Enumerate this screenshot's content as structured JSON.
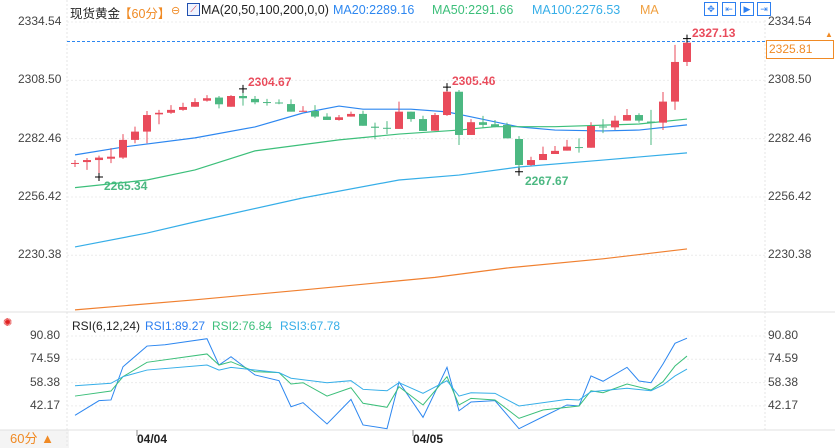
{
  "header": {
    "symbol": "现货黄金",
    "period": "【60分】",
    "ma_label": "MA(20,50,100,200,0,0)",
    "ma20": "MA20:2289.16",
    "ma50": "MA50:2291.66",
    "ma100": "MA100:2276.53",
    "ma200": "MA",
    "toolbar_icons": [
      "crosshair-icon",
      "range-icon",
      "play-icon",
      "next-icon"
    ]
  },
  "price_axis": {
    "left_labels": [
      "2334.54",
      "2308.50",
      "2282.46",
      "2256.42",
      "2230.38"
    ],
    "right_labels": [
      "2334.54",
      "2308.50",
      "2282.46",
      "2256.42",
      "2230.38"
    ],
    "current_price": "2325.81"
  },
  "annotations": {
    "high1": "2304.67",
    "high2": "2305.46",
    "high3": "2327.13",
    "low1": "2265.34",
    "low2": "2267.67"
  },
  "rsi": {
    "label": "RSI(6,12,24)",
    "rsi1": "RSI1:89.27",
    "rsi2": "RSI2:76.84",
    "rsi3": "RSI3:67.78",
    "left_labels": [
      "90.80",
      "74.59",
      "58.38",
      "42.17"
    ],
    "right_labels": [
      "90.80",
      "74.59",
      "58.38",
      "42.17"
    ]
  },
  "footer": {
    "period_button": "60分 ▲",
    "dates": [
      "04/04",
      "04/05"
    ]
  },
  "colors": {
    "up": "#e94b5b",
    "down": "#4cb882",
    "ma20": "#2d87f0",
    "ma50": "#3cbf7a",
    "ma100": "#36aee8",
    "ma200": "#f08030",
    "accent": "#f08a24"
  },
  "chart_data": [
    {
      "type": "candlestick",
      "title": "现货黄金 60分",
      "ylim": [
        2210,
        2340
      ],
      "ohlc": [
        [
          2271.3,
          2272.9,
          2269.8,
          2271.6
        ],
        [
          2272.0,
          2273.8,
          2268.5,
          2272.9
        ],
        [
          2272.9,
          2274.9,
          2265.34,
          2274.0
        ],
        [
          2273.5,
          2278.2,
          2271.5,
          2274.4
        ],
        [
          2274.0,
          2284.5,
          2273.4,
          2281.9
        ],
        [
          2281.9,
          2287.8,
          2280.4,
          2285.6
        ],
        [
          2285.6,
          2294.8,
          2280.4,
          2293.0
        ],
        [
          2293.3,
          2295.3,
          2288.9,
          2294.0
        ],
        [
          2294.0,
          2297.4,
          2293.5,
          2295.3
        ],
        [
          2295.3,
          2298.5,
          2294.9,
          2296.6
        ],
        [
          2296.7,
          2300.5,
          2296.7,
          2298.8
        ],
        [
          2299.4,
          2301.9,
          2299.0,
          2300.5
        ],
        [
          2300.8,
          2301.5,
          2296.0,
          2297.8
        ],
        [
          2296.7,
          2301.9,
          2296.7,
          2301.5
        ],
        [
          2301.5,
          2304.67,
          2297.2,
          2300.5
        ],
        [
          2300.2,
          2301.5,
          2297.8,
          2298.7
        ],
        [
          2298.8,
          2300.2,
          2297.2,
          2298.6
        ],
        [
          2298.6,
          2300.0,
          2297.8,
          2298.3
        ],
        [
          2297.9,
          2300.0,
          2294.5,
          2294.5
        ],
        [
          2294.5,
          2297.0,
          2294.5,
          2294.9
        ],
        [
          2294.8,
          2297.4,
          2291.6,
          2292.3
        ],
        [
          2292.3,
          2293.8,
          2290.8,
          2290.8
        ],
        [
          2290.8,
          2293.0,
          2290.5,
          2292.0
        ],
        [
          2292.3,
          2294.5,
          2292.3,
          2293.5
        ],
        [
          2293.5,
          2294.9,
          2288.2,
          2288.2
        ],
        [
          2287.8,
          2289.6,
          2282.2,
          2287.3
        ],
        [
          2287.3,
          2290.3,
          2284.5,
          2287.0
        ],
        [
          2286.8,
          2299.0,
          2286.8,
          2294.5
        ],
        [
          2294.5,
          2294.5,
          2290.0,
          2291.2
        ],
        [
          2291.2,
          2292.7,
          2285.9,
          2285.9
        ],
        [
          2286.0,
          2293.9,
          2286.0,
          2293.0
        ],
        [
          2293.0,
          2305.46,
          2292.6,
          2303.4
        ],
        [
          2303.4,
          2304.2,
          2279.6,
          2284.1
        ],
        [
          2284.1,
          2291.2,
          2284.1,
          2289.8
        ],
        [
          2289.8,
          2292.6,
          2287.4,
          2288.6
        ],
        [
          2288.9,
          2290.8,
          2287.5,
          2287.8
        ],
        [
          2288.6,
          2289.6,
          2282.6,
          2282.6
        ],
        [
          2282.3,
          2283.6,
          2267.67,
          2270.7
        ],
        [
          2270.7,
          2274.4,
          2270.3,
          2272.9
        ],
        [
          2272.9,
          2278.9,
          2272.9,
          2275.6
        ],
        [
          2275.6,
          2279.2,
          2275.6,
          2277.0
        ],
        [
          2277.1,
          2281.9,
          2277.1,
          2278.9
        ],
        [
          2278.7,
          2282.6,
          2276.2,
          2278.4
        ],
        [
          2278.4,
          2289.8,
          2278.4,
          2288.1
        ],
        [
          2287.9,
          2291.2,
          2284.9,
          2287.6
        ],
        [
          2287.5,
          2292.7,
          2286.3,
          2290.5
        ],
        [
          2290.5,
          2295.7,
          2290.5,
          2293.0
        ],
        [
          2293.0,
          2293.8,
          2289.6,
          2290.5
        ],
        [
          2290.1,
          2295.3,
          2279.6,
          2289.8
        ],
        [
          2289.6,
          2303.3,
          2286.3,
          2299.0
        ],
        [
          2299.0,
          2324.3,
          2295.3,
          2316.7
        ],
        [
          2316.7,
          2327.13,
          2314.9,
          2325.3
        ]
      ],
      "ma_series": [
        {
          "name": "MA20",
          "points": [
            [
              0,
              2275.2
            ],
            [
              4,
              2278.7
            ],
            [
              10,
              2282.8
            ],
            [
              15,
              2287.7
            ],
            [
              19,
              2293.9
            ],
            [
              22,
              2297.0
            ],
            [
              24,
              2295.6
            ],
            [
              28,
              2295.6
            ],
            [
              31,
              2294.4
            ],
            [
              33,
              2292.2
            ],
            [
              37,
              2287.7
            ],
            [
              40,
              2286.3
            ],
            [
              44,
              2285.9
            ],
            [
              47,
              2286.3
            ],
            [
              51,
              2288.6
            ]
          ]
        },
        {
          "name": "MA50",
          "points": [
            [
              0,
              2260.6
            ],
            [
              6,
              2264.0
            ],
            [
              10,
              2268.5
            ],
            [
              15,
              2277.0
            ],
            [
              22,
              2281.9
            ],
            [
              27,
              2284.5
            ],
            [
              32,
              2286.3
            ],
            [
              35,
              2287.8
            ],
            [
              40,
              2287.8
            ],
            [
              47,
              2289.0
            ],
            [
              51,
              2291.2
            ]
          ]
        },
        {
          "name": "MA100",
          "points": [
            [
              0,
              2234.1
            ],
            [
              6,
              2240.3
            ],
            [
              10,
              2245.3
            ],
            [
              19,
              2256.0
            ],
            [
              27,
              2264.0
            ],
            [
              32,
              2266.2
            ],
            [
              37,
              2269.8
            ],
            [
              44,
              2272.9
            ],
            [
              51,
              2276.1
            ]
          ]
        },
        {
          "name": "MA200",
          "points": [
            [
              0,
              2206.0
            ],
            [
              10,
              2210.5
            ],
            [
              19,
              2214.9
            ],
            [
              30,
              2220.5
            ],
            [
              36,
              2224.7
            ],
            [
              44,
              2228.8
            ],
            [
              51,
              2233.2
            ]
          ]
        }
      ],
      "current_price": 2325.81
    },
    {
      "type": "line",
      "title": "RSI(6,12,24)",
      "ylim": [
        26,
        92
      ],
      "series": [
        {
          "name": "RSI1",
          "points": [
            [
              0,
              35.6
            ],
            [
              2,
              45.8
            ],
            [
              3,
              46.3
            ],
            [
              4,
              69.4
            ],
            [
              6,
              83.8
            ],
            [
              7.5,
              84.7
            ],
            [
              11,
              88.9
            ],
            [
              12,
              70.6
            ],
            [
              13,
              76.4
            ],
            [
              15,
              63.7
            ],
            [
              17,
              59.7
            ],
            [
              18,
              41.6
            ],
            [
              19,
              44.4
            ],
            [
              21,
              29.6
            ],
            [
              23,
              46.7
            ],
            [
              24,
              28.9
            ],
            [
              26,
              26.3
            ],
            [
              27,
              58.8
            ],
            [
              29,
              34.2
            ],
            [
              31,
              69.0
            ],
            [
              32,
              38.8
            ],
            [
              33,
              44.9
            ],
            [
              35,
              45.8
            ],
            [
              37,
              26.3
            ],
            [
              39,
              34.6
            ],
            [
              41,
              42.8
            ],
            [
              42,
              42.1
            ],
            [
              43,
              63.0
            ],
            [
              44,
              59.3
            ],
            [
              46,
              69.0
            ],
            [
              47,
              59.5
            ],
            [
              48,
              58.3
            ],
            [
              49,
              71.3
            ],
            [
              50,
              85.7
            ],
            [
              51,
              89.27
            ]
          ]
        },
        {
          "name": "RSI2",
          "points": [
            [
              0,
              49.0
            ],
            [
              3,
              52.5
            ],
            [
              4,
              62.5
            ],
            [
              6,
              72.5
            ],
            [
              11,
              78.3
            ],
            [
              12,
              70.6
            ],
            [
              13,
              72.9
            ],
            [
              15,
              66.0
            ],
            [
              17,
              65.3
            ],
            [
              18,
              57.4
            ],
            [
              19,
              58.3
            ],
            [
              21,
              49.0
            ],
            [
              23,
              54.8
            ],
            [
              24,
              44.0
            ],
            [
              26,
              41.2
            ],
            [
              27,
              55.5
            ],
            [
              29,
              42.8
            ],
            [
              31,
              62.5
            ],
            [
              32,
              42.8
            ],
            [
              33,
              47.4
            ],
            [
              35,
              46.3
            ],
            [
              37,
              33.5
            ],
            [
              39,
              39.3
            ],
            [
              42,
              42.1
            ],
            [
              43,
              52.7
            ],
            [
              44,
              51.3
            ],
            [
              46,
              57.4
            ],
            [
              48,
              53.2
            ],
            [
              49,
              59.0
            ],
            [
              50,
              69.9
            ],
            [
              51,
              76.84
            ]
          ]
        },
        {
          "name": "RSI3",
          "points": [
            [
              0,
              56.2
            ],
            [
              3,
              57.9
            ],
            [
              4,
              62.5
            ],
            [
              6,
              67.1
            ],
            [
              11,
              70.6
            ],
            [
              12,
              67.1
            ],
            [
              13,
              69.0
            ],
            [
              17,
              65.3
            ],
            [
              18,
              61.4
            ],
            [
              21,
              58.3
            ],
            [
              23,
              59.7
            ],
            [
              24,
              53.7
            ],
            [
              26,
              52.7
            ],
            [
              27,
              58.3
            ],
            [
              29,
              50.9
            ],
            [
              31,
              59.7
            ],
            [
              32,
              49.0
            ],
            [
              33,
              51.3
            ],
            [
              35,
              50.9
            ],
            [
              37,
              42.1
            ],
            [
              41,
              46.7
            ],
            [
              42,
              46.3
            ],
            [
              43,
              52.0
            ],
            [
              46,
              54.4
            ],
            [
              48,
              52.7
            ],
            [
              49,
              56.7
            ],
            [
              50,
              63.0
            ],
            [
              51,
              67.78
            ]
          ]
        }
      ]
    }
  ]
}
